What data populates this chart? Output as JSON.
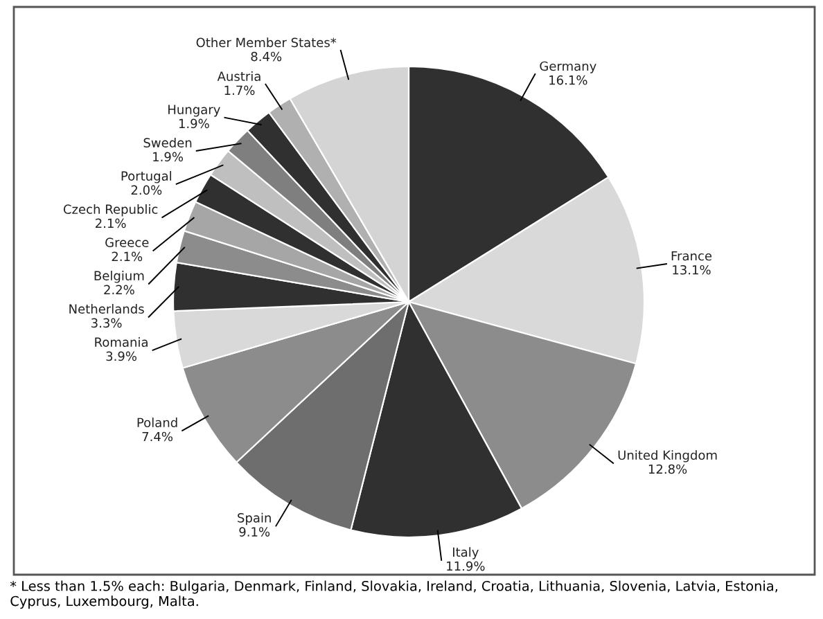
{
  "chart_data": {
    "type": "pie",
    "categories": [
      "Germany",
      "France",
      "United Kingdom",
      "Italy",
      "Spain",
      "Poland",
      "Romania",
      "Netherlands",
      "Belgium",
      "Greece",
      "Czech Republic",
      "Portugal",
      "Sweden",
      "Hungary",
      "Austria",
      "Other Member States*"
    ],
    "values": [
      16.1,
      13.1,
      12.8,
      11.9,
      9.1,
      7.4,
      3.9,
      3.3,
      2.2,
      2.1,
      2.1,
      2.0,
      1.9,
      1.9,
      1.7,
      8.4
    ],
    "value_labels": [
      "16.1%",
      "13.1%",
      "12.8%",
      "11.9%",
      "9.1%",
      "7.4%",
      "3.9%",
      "3.3%",
      "2.2%",
      "2.1%",
      "2.1%",
      "2.0%",
      "1.9%",
      "1.9%",
      "1.7%",
      "8.4%"
    ],
    "colors": [
      "#303030",
      "#d9d9d9",
      "#8c8c8c",
      "#303030",
      "#6e6e6e",
      "#8c8c8c",
      "#d9d9d9",
      "#303030",
      "#8c8c8c",
      "#a6a6a6",
      "#303030",
      "#bfbfbf",
      "#7f7f7f",
      "#303030",
      "#b0b0b0",
      "#d4d4d4"
    ],
    "annotations": [
      "* Less than 1.5% each: Bulgaria, Denmark, Finland, Slovakia, Ireland, Croatia, Lithuania, Slovenia, Latvia, Estonia, Cyprus, Luxembourg, Malta."
    ],
    "legend": false
  }
}
